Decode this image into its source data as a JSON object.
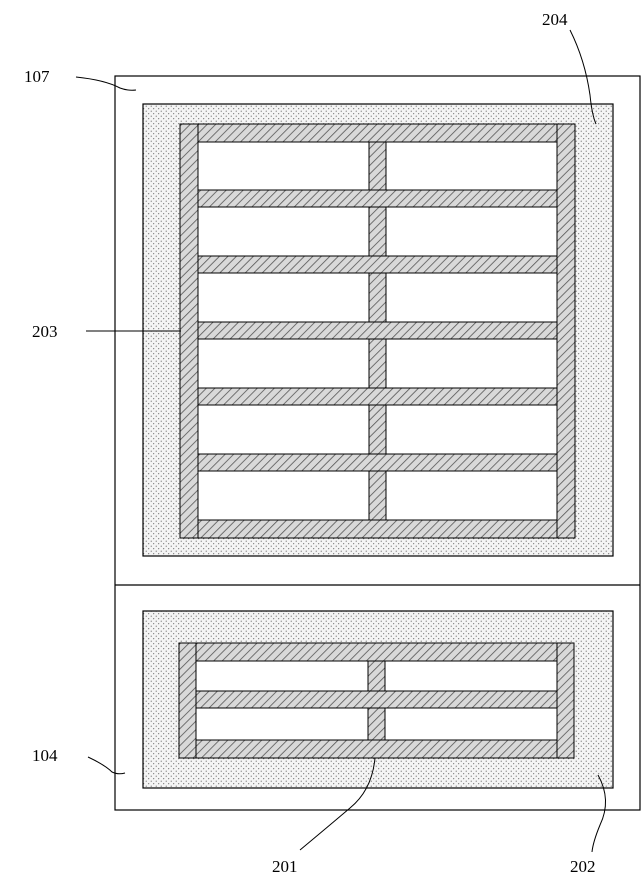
{
  "diagram": {
    "labels": {
      "outer_frame_upper": "107",
      "outer_frame_lower": "104",
      "upper_grid": "203",
      "upper_dotted_region": "204",
      "lower_grid": "201",
      "lower_dotted_region": "202"
    }
  }
}
